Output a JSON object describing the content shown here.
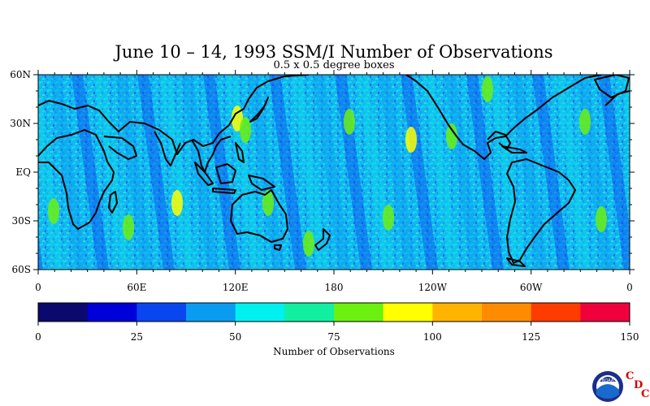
{
  "title": "June 10 – 14, 1993 SSM/I Number of Observations",
  "subtitle": "0.5 x 0.5 degree boxes",
  "map": {
    "lon_labels": [
      "0",
      "60E",
      "120E",
      "180",
      "120W",
      "60W",
      "0"
    ],
    "lat_labels": [
      "60N",
      "30N",
      "EQ",
      "30S",
      "60S"
    ],
    "lon_values": [
      0,
      60,
      120,
      180,
      240,
      300,
      360
    ],
    "lat_values": [
      60,
      30,
      0,
      -30,
      -60
    ],
    "lon_range": [
      0,
      360
    ],
    "lat_range": [
      -60,
      60
    ]
  },
  "colorbar": {
    "label": "Number of Observations",
    "tick_labels": [
      "0",
      "25",
      "50",
      "75",
      "100",
      "125",
      "150"
    ],
    "tick_values": [
      0,
      25,
      50,
      75,
      100,
      125,
      150
    ],
    "range": [
      0,
      150
    ],
    "colors": [
      "#0a0a6e",
      "#0000d8",
      "#0a46f0",
      "#0a9cf0",
      "#00f0f0",
      "#10f0a0",
      "#6cf010",
      "#ffff00",
      "#ffb400",
      "#ff8c00",
      "#ff3c00",
      "#f0003c"
    ]
  },
  "logo": {
    "emblem_text": "NOAA",
    "letters": [
      "C",
      "D",
      "C"
    ],
    "emblem_icon": "noaa-logo-icon"
  }
}
